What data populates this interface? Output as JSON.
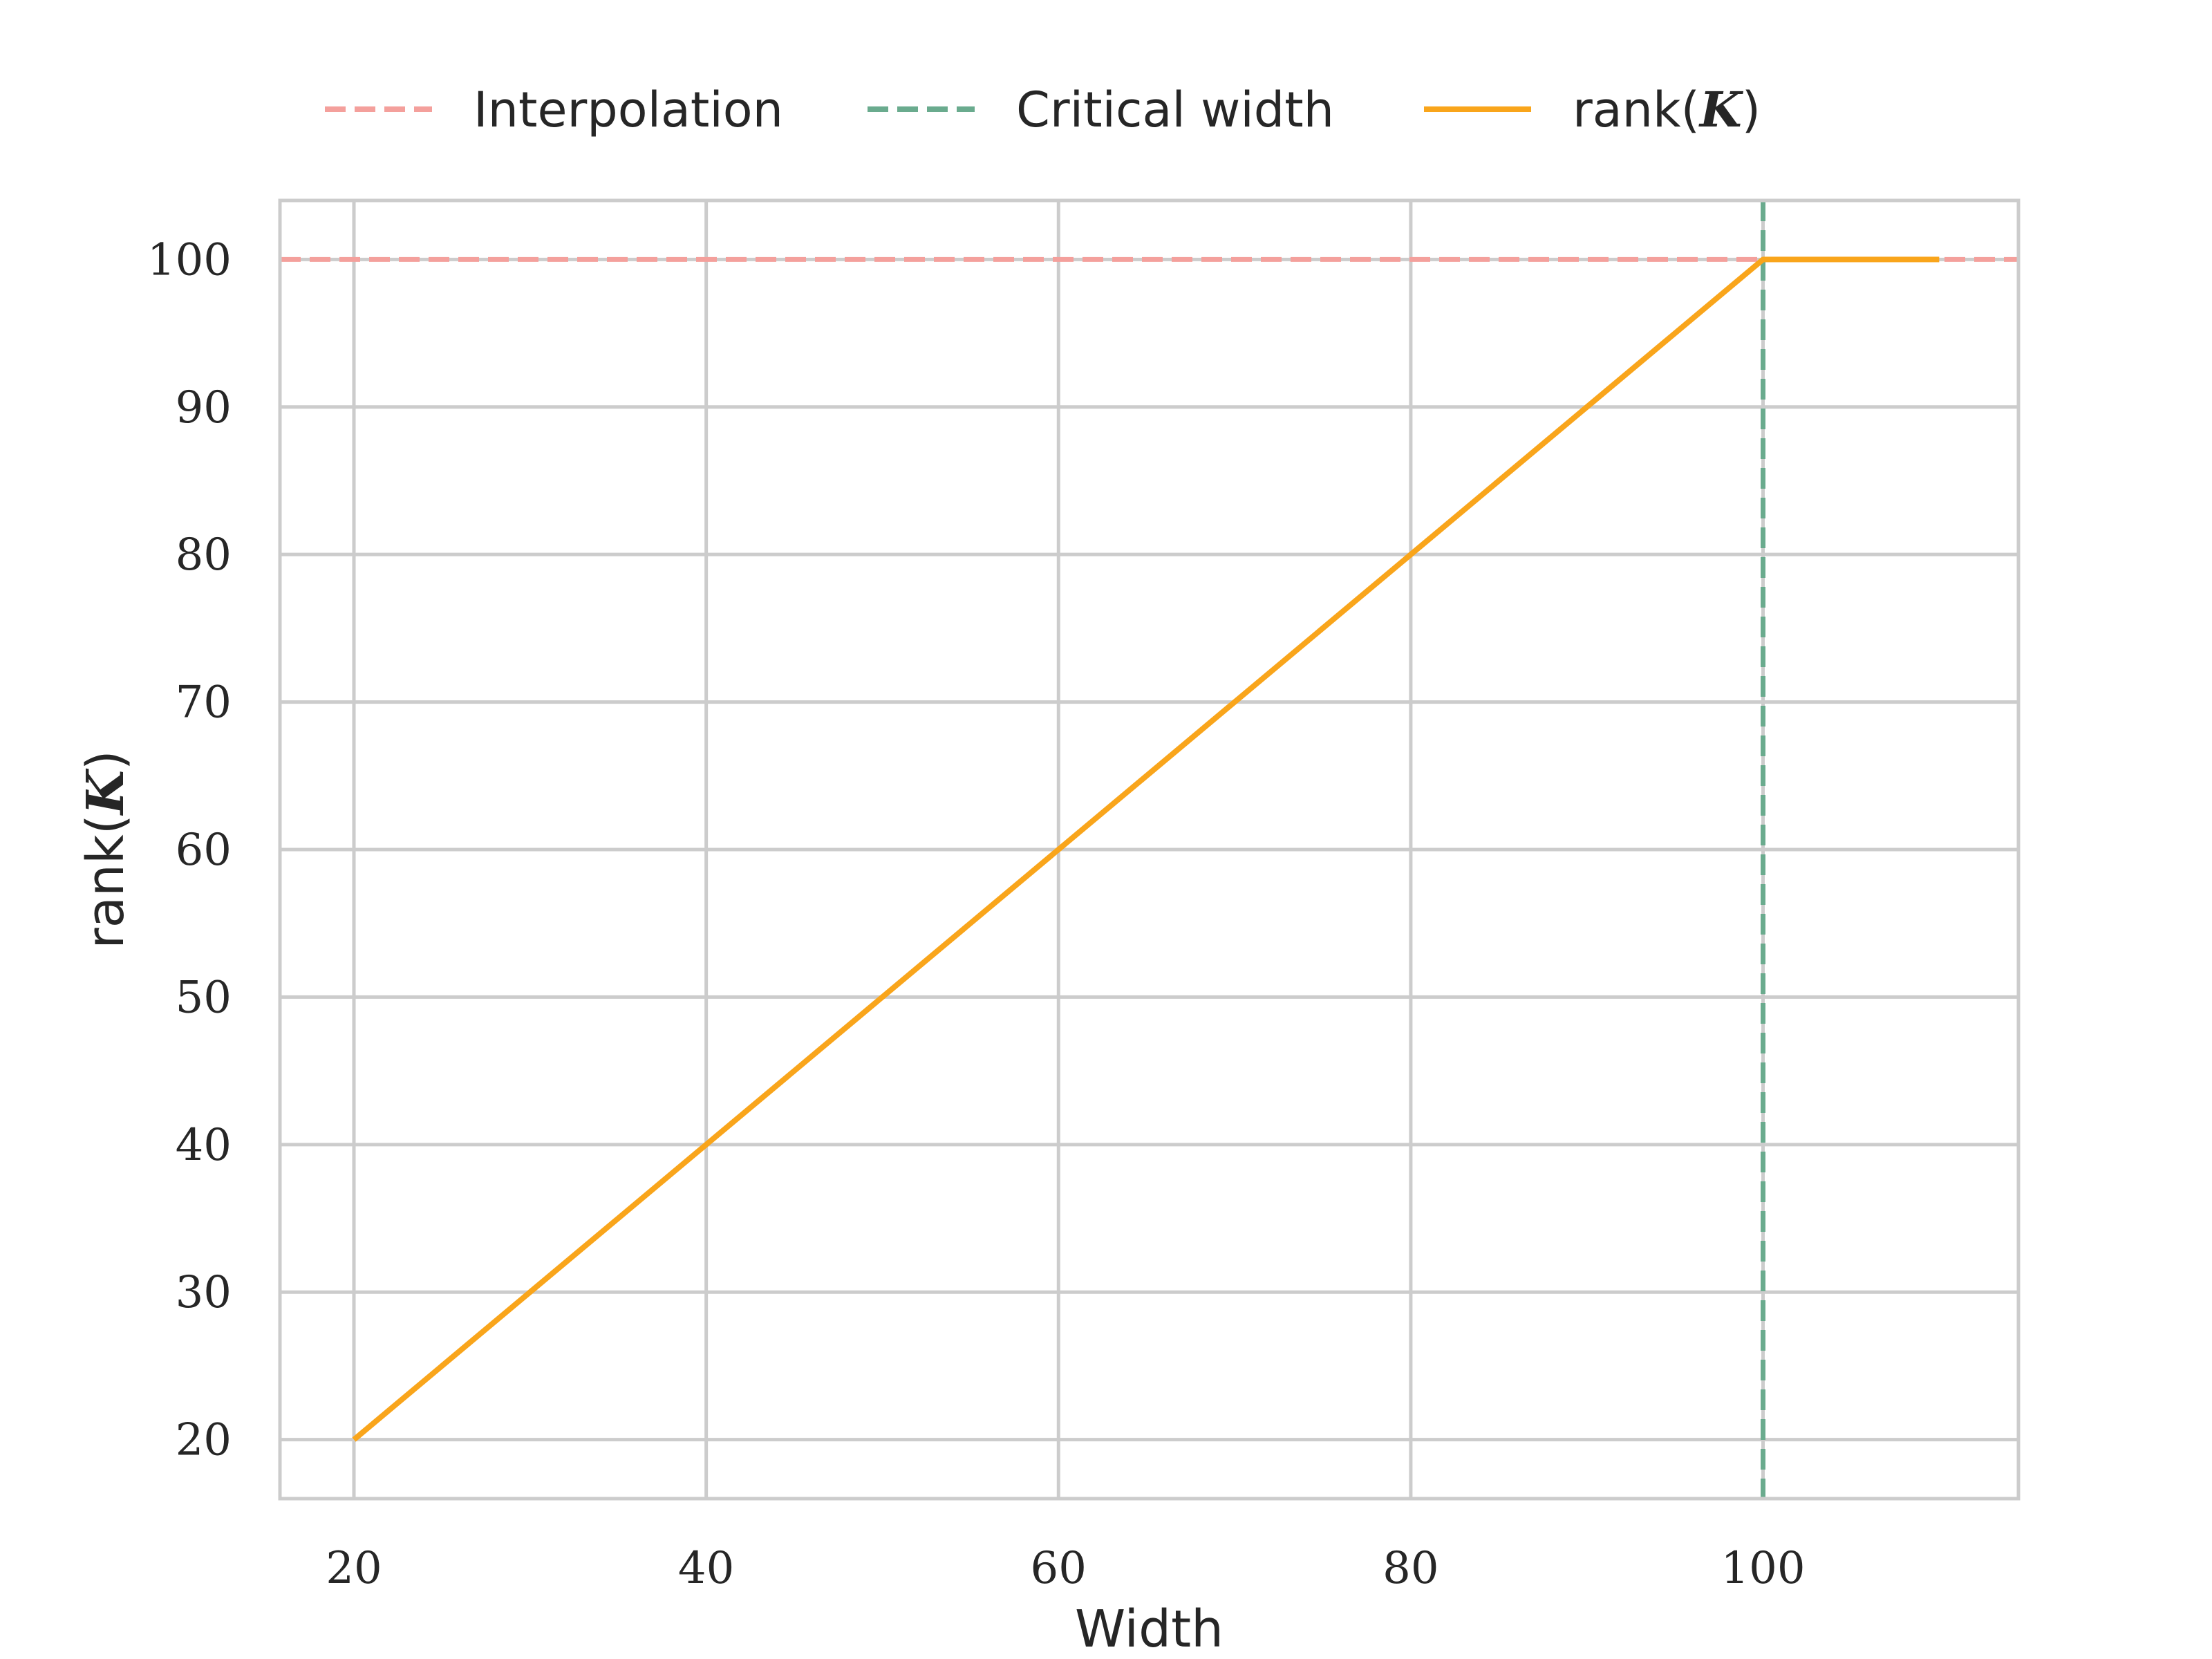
{
  "chart_data": {
    "type": "line",
    "xlabel": "Width",
    "ylabel": {
      "prefix": "rank(",
      "symbol": "K",
      "suffix": ")"
    },
    "xlim": [
      15.8,
      114.5
    ],
    "ylim": [
      16,
      104
    ],
    "x_ticks": [
      20,
      40,
      60,
      80,
      100
    ],
    "y_ticks": [
      20,
      30,
      40,
      50,
      60,
      70,
      80,
      90,
      100
    ],
    "grid": true,
    "legend_position": "top-center",
    "series": [
      {
        "name": "Interpolation",
        "style": "dashed",
        "color": "#f4a09c",
        "kind": "hline",
        "y": 100
      },
      {
        "name": "Critical width",
        "style": "dashed",
        "color": "#6aab8e",
        "kind": "vline",
        "x": 100
      },
      {
        "name": {
          "prefix": "rank(",
          "symbol": "K",
          "suffix": ")"
        },
        "style": "solid",
        "color": "#f9a51b",
        "kind": "line",
        "points": [
          [
            20,
            20
          ],
          [
            100,
            100
          ],
          [
            110,
            100
          ]
        ]
      }
    ]
  }
}
